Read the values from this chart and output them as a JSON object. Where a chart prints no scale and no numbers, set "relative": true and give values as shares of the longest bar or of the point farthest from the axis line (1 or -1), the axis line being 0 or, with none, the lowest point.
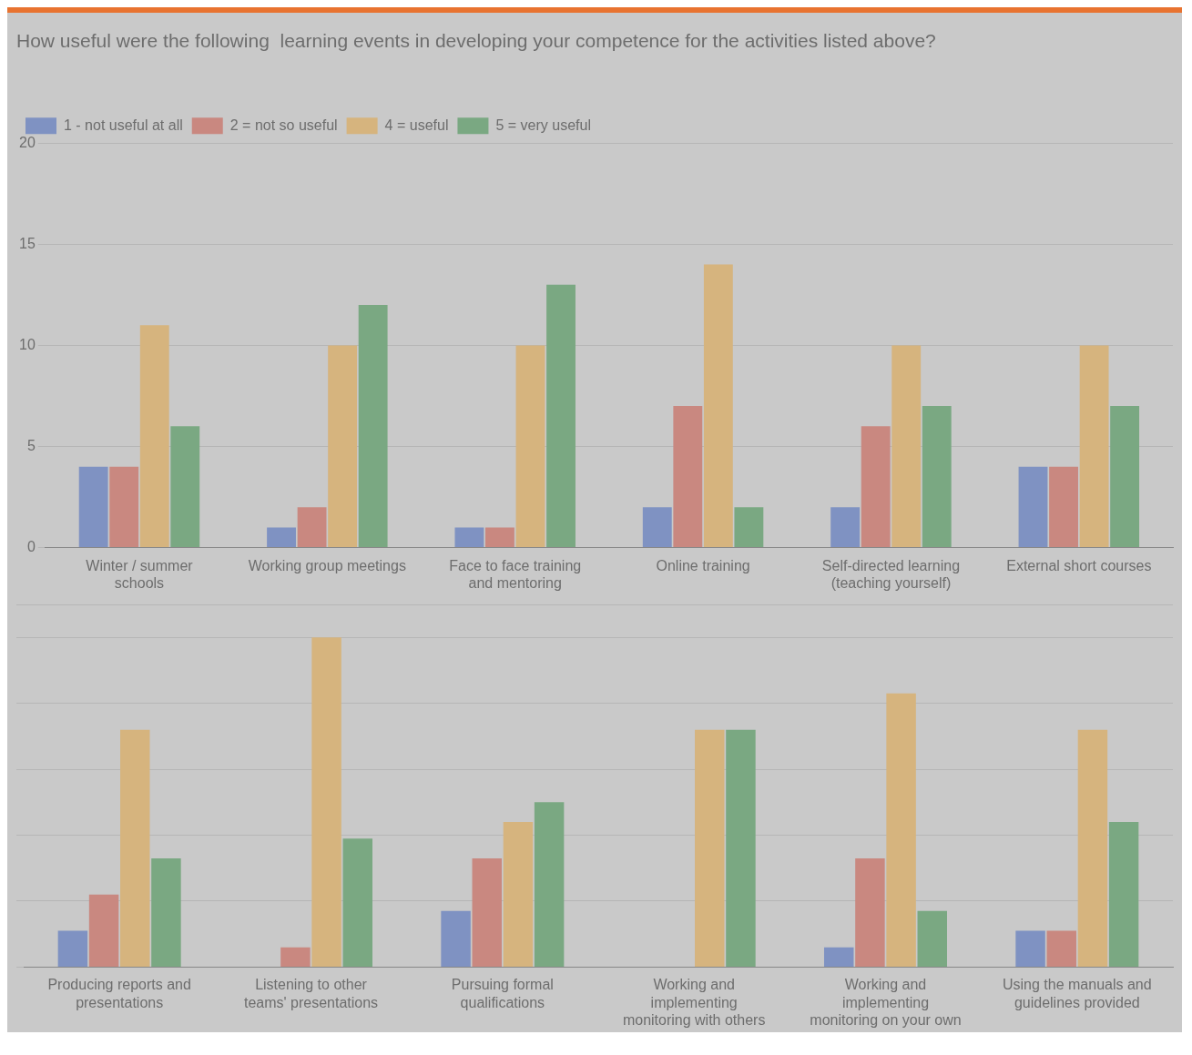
{
  "chart_data": [
    {
      "type": "bar",
      "title": "How useful were the following  learning events in developing your competence for the activities listed above?",
      "categories": [
        "Winter / summer schools",
        "Working group meetings",
        "Face to face training and mentoring",
        "Online training",
        "Self-directed learning (teaching yourself)",
        "External short courses"
      ],
      "series": [
        {
          "name": "1 - not useful at all",
          "color": "#7f92c2",
          "values": [
            4,
            1,
            1,
            2,
            2,
            4
          ]
        },
        {
          "name": "2 = not so useful",
          "color": "#c98880",
          "values": [
            4,
            2,
            1,
            7,
            6,
            4
          ]
        },
        {
          "name": "4 = useful",
          "color": "#d6b47e",
          "values": [
            11,
            10,
            10,
            14,
            10,
            10
          ]
        },
        {
          "name": "5 = very useful",
          "color": "#7aa882",
          "values": [
            6,
            12,
            13,
            2,
            7,
            7
          ]
        }
      ],
      "ylim": [
        0,
        20
      ],
      "yticks": [
        0,
        5,
        10,
        15,
        20
      ],
      "grid": "y",
      "legend": "top left"
    },
    {
      "type": "bar",
      "relative": true,
      "categories": [
        "Producing reports and presentations",
        "Listening to other teams' presentations",
        "Pursuing formal qualifications",
        "Working and implementing monitoring with others",
        "Working and implementing monitoring on your own",
        "Using the manuals and guidelines provided"
      ],
      "series": [
        {
          "color": "#7f92c2",
          "values": [
            0.11,
            0,
            0.17,
            0,
            0.06,
            0.11
          ]
        },
        {
          "color": "#c98880",
          "values": [
            0.22,
            0.06,
            0.33,
            0,
            0.33,
            0.11
          ]
        },
        {
          "color": "#d6b47e",
          "values": [
            0.72,
            1,
            0.44,
            0.72,
            0.83,
            0.72
          ]
        },
        {
          "color": "#7aa882",
          "values": [
            0.33,
            0.39,
            0.5,
            0.72,
            0.17,
            0.44
          ]
        }
      ],
      "grid": "y"
    }
  ]
}
